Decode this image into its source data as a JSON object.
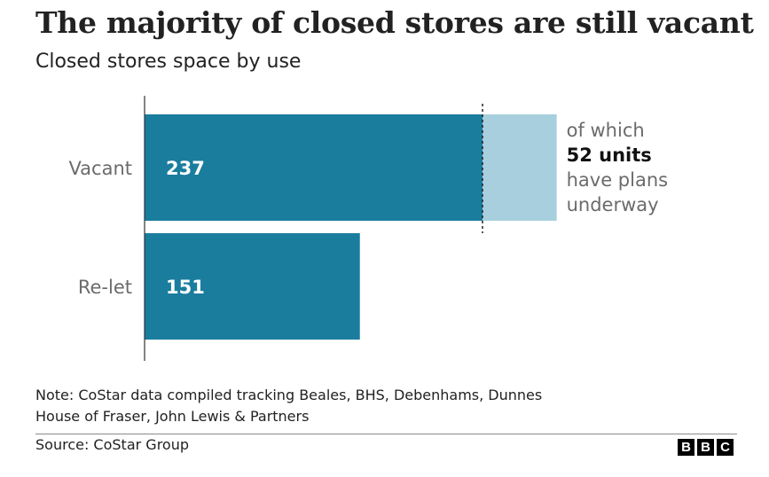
{
  "title": "The majority of closed stores are still vacant",
  "subtitle": "Closed stores space by use",
  "chart_data": {
    "type": "bar",
    "orientation": "horizontal",
    "categories": [
      "Vacant",
      "Re-let"
    ],
    "values": [
      237,
      151
    ],
    "data_labels": [
      "237",
      "151"
    ],
    "sub_segment": {
      "category": "Vacant",
      "value": 52,
      "label_lines": [
        "of which",
        "52 units",
        "have plans",
        "underway"
      ]
    },
    "bar_color": "#1a7d9e",
    "sub_segment_color": "#a7cfdd",
    "xlim": [
      0,
      289
    ],
    "grid": false
  },
  "note_lines": [
    "Note: CoStar data compiled tracking Beales, BHS, Debenhams, Dunnes",
    "House of Fraser, John Lewis & Partners"
  ],
  "source": "Source: CoStar Group",
  "logo": [
    "B",
    "B",
    "C"
  ]
}
